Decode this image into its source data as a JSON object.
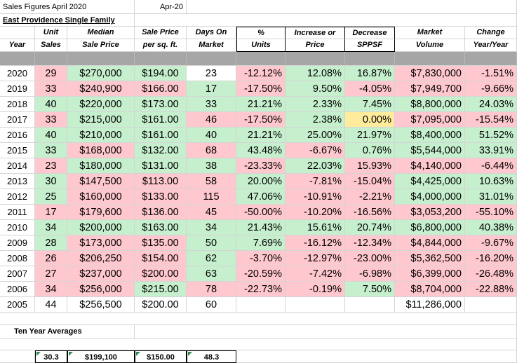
{
  "title": "Sales Figures April 2020",
  "date_label": "Apr-20",
  "subtitle": "East Providence Single Family",
  "headers": {
    "year": [
      "",
      "Year"
    ],
    "unit_sales": [
      "Unit",
      "Sales"
    ],
    "median": [
      "Median",
      "Sale Price"
    ],
    "ppsf": [
      "Sale Price",
      "per sq. ft."
    ],
    "dom": [
      "Days On",
      "Market"
    ],
    "pct_units": [
      "%",
      "Units"
    ],
    "inc_dec_price": [
      "Increase or",
      "Price"
    ],
    "dec_sppsf": [
      "Decrease",
      "SPPSF"
    ],
    "market_volume": [
      "Market",
      "Volume"
    ],
    "change": [
      "Change",
      "Year/Year"
    ]
  },
  "rows": [
    {
      "year": "2020",
      "units": "29",
      "median": "$270,000",
      "ppsf": "$194.00",
      "dom": "23",
      "pct": "-12.12%",
      "price": "12.08%",
      "sppsf": "16.87%",
      "volume": "$7,830,000",
      "change": "-1.51%",
      "colors": [
        "r",
        "g",
        "g",
        "",
        "r",
        "g",
        "g",
        "r",
        "r"
      ]
    },
    {
      "year": "2019",
      "units": "33",
      "median": "$240,900",
      "ppsf": "$166.00",
      "dom": "17",
      "pct": "-17.50%",
      "price": "9.50%",
      "sppsf": "-4.05%",
      "volume": "$7,949,700",
      "change": "-9.66%",
      "colors": [
        "r",
        "r",
        "r",
        "g",
        "r",
        "g",
        "r",
        "r",
        "r"
      ]
    },
    {
      "year": "2018",
      "units": "40",
      "median": "$220,000",
      "ppsf": "$173.00",
      "dom": "33",
      "pct": "21.21%",
      "price": "2.33%",
      "sppsf": "7.45%",
      "volume": "$8,800,000",
      "change": "24.03%",
      "colors": [
        "g",
        "g",
        "g",
        "g",
        "g",
        "g",
        "g",
        "g",
        "g"
      ]
    },
    {
      "year": "2017",
      "units": "33",
      "median": "$215,000",
      "ppsf": "$161.00",
      "dom": "46",
      "pct": "-17.50%",
      "price": "2.38%",
      "sppsf": "0.00%",
      "volume": "$7,095,000",
      "change": "-15.54%",
      "colors": [
        "r",
        "g",
        "g",
        "r",
        "r",
        "g",
        "y",
        "r",
        "r"
      ]
    },
    {
      "year": "2016",
      "units": "40",
      "median": "$210,000",
      "ppsf": "$161.00",
      "dom": "40",
      "pct": "21.21%",
      "price": "25.00%",
      "sppsf": "21.97%",
      "volume": "$8,400,000",
      "change": "51.52%",
      "colors": [
        "g",
        "g",
        "g",
        "g",
        "g",
        "g",
        "g",
        "g",
        "g"
      ]
    },
    {
      "year": "2015",
      "units": "33",
      "median": "$168,000",
      "ppsf": "$132.00",
      "dom": "68",
      "pct": "43.48%",
      "price": "-6.67%",
      "sppsf": "0.76%",
      "volume": "$5,544,000",
      "change": "33.91%",
      "colors": [
        "g",
        "r",
        "g",
        "r",
        "g",
        "r",
        "g",
        "g",
        "g"
      ]
    },
    {
      "year": "2014",
      "units": "23",
      "median": "$180,000",
      "ppsf": "$131.00",
      "dom": "38",
      "pct": "-23.33%",
      "price": "22.03%",
      "sppsf": "15.93%",
      "volume": "$4,140,000",
      "change": "-6.44%",
      "colors": [
        "r",
        "g",
        "g",
        "g",
        "r",
        "g",
        "r",
        "r",
        "r"
      ]
    },
    {
      "year": "2013",
      "units": "30",
      "median": "$147,500",
      "ppsf": "$113.00",
      "dom": "58",
      "pct": "20.00%",
      "price": "-7.81%",
      "sppsf": "-15.04%",
      "volume": "$4,425,000",
      "change": "10.63%",
      "colors": [
        "g",
        "r",
        "r",
        "r",
        "g",
        "r",
        "r",
        "g",
        "g"
      ]
    },
    {
      "year": "2012",
      "units": "25",
      "median": "$160,000",
      "ppsf": "$133.00",
      "dom": "115",
      "pct": "47.06%",
      "price": "-10.91%",
      "sppsf": "-2.21%",
      "volume": "$4,000,000",
      "change": "31.01%",
      "colors": [
        "g",
        "r",
        "r",
        "r",
        "g",
        "r",
        "r",
        "g",
        "g"
      ]
    },
    {
      "year": "2011",
      "units": "17",
      "median": "$179,600",
      "ppsf": "$136.00",
      "dom": "45",
      "pct": "-50.00%",
      "price": "-10.20%",
      "sppsf": "-16.56%",
      "volume": "$3,053,200",
      "change": "-55.10%",
      "colors": [
        "r",
        "r",
        "r",
        "r",
        "r",
        "r",
        "r",
        "r",
        "r"
      ]
    },
    {
      "year": "2010",
      "units": "34",
      "median": "$200,000",
      "ppsf": "$163.00",
      "dom": "34",
      "pct": "21.43%",
      "price": "15.61%",
      "sppsf": "20.74%",
      "volume": "$6,800,000",
      "change": "40.38%",
      "colors": [
        "g",
        "g",
        "g",
        "g",
        "g",
        "g",
        "g",
        "g",
        "g"
      ]
    },
    {
      "year": "2009",
      "units": "28",
      "median": "$173,000",
      "ppsf": "$135.00",
      "dom": "50",
      "pct": "7.69%",
      "price": "-16.12%",
      "sppsf": "-12.34%",
      "volume": "$4,844,000",
      "change": "-9.67%",
      "colors": [
        "g",
        "r",
        "r",
        "g",
        "g",
        "r",
        "r",
        "r",
        "r"
      ]
    },
    {
      "year": "2008",
      "units": "26",
      "median": "$206,250",
      "ppsf": "$154.00",
      "dom": "62",
      "pct": "-3.70%",
      "price": "-12.97%",
      "sppsf": "-23.00%",
      "volume": "$5,362,500",
      "change": "-16.20%",
      "colors": [
        "r",
        "r",
        "r",
        "g",
        "r",
        "r",
        "r",
        "r",
        "r"
      ]
    },
    {
      "year": "2007",
      "units": "27",
      "median": "$237,000",
      "ppsf": "$200.00",
      "dom": "63",
      "pct": "-20.59%",
      "price": "-7.42%",
      "sppsf": "-6.98%",
      "volume": "$6,399,000",
      "change": "-26.48%",
      "colors": [
        "r",
        "r",
        "r",
        "g",
        "r",
        "r",
        "r",
        "r",
        "r"
      ]
    },
    {
      "year": "2006",
      "units": "34",
      "median": "$256,000",
      "ppsf": "$215.00",
      "dom": "78",
      "pct": "-22.73%",
      "price": "-0.19%",
      "sppsf": "7.50%",
      "volume": "$8,704,000",
      "change": "-22.88%",
      "colors": [
        "r",
        "r",
        "g",
        "r",
        "r",
        "r",
        "g",
        "r",
        "r"
      ]
    },
    {
      "year": "2005",
      "units": "44",
      "median": "$256,500",
      "ppsf": "$200.00",
      "dom": "60",
      "pct": "",
      "price": "",
      "sppsf": "",
      "volume": "$11,286,000",
      "change": "",
      "colors": [
        "",
        "",
        "",
        "",
        "",
        "",
        "",
        "",
        ""
      ]
    }
  ],
  "averages": {
    "label": "Ten Year Averages",
    "units": "30.3",
    "median": "$199,100",
    "ppsf": "$150.00",
    "dom": "48.3"
  },
  "colors": {
    "good": "#c6efce",
    "bad": "#ffc7ce",
    "neutral": "#ffeb9c",
    "header_bar": "#a6a6a6"
  }
}
